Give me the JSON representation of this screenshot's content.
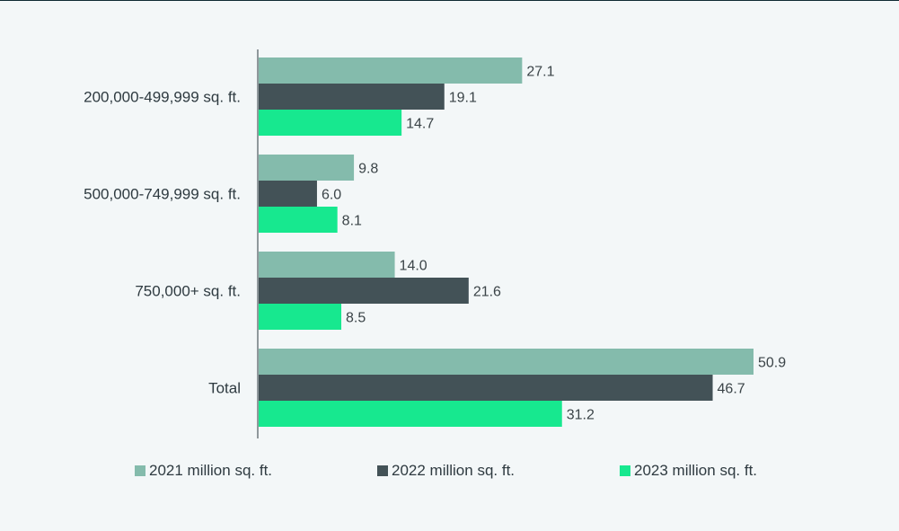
{
  "chart_data": {
    "type": "bar",
    "orientation": "horizontal",
    "categories": [
      "200,000-499,999 sq. ft.",
      "500,000-749,999 sq. ft.",
      "750,000+ sq. ft.",
      "Total"
    ],
    "series": [
      {
        "name": "2021 million sq. ft.",
        "color": "#84bbac",
        "values": [
          27.1,
          9.8,
          14.0,
          50.9
        ],
        "labels": [
          "27.1",
          "9.8",
          "14.0",
          "50.9"
        ]
      },
      {
        "name": "2022 million sq. ft.",
        "color": "#435257",
        "values": [
          19.1,
          6.0,
          21.6,
          46.7
        ],
        "labels": [
          "19.1",
          "6.0",
          "21.6",
          "46.7"
        ]
      },
      {
        "name": "2023 million sq. ft.",
        "color": "#17e88f",
        "values": [
          14.7,
          8.1,
          8.5,
          31.2
        ],
        "labels": [
          "14.7",
          "8.1",
          "8.5",
          "31.2"
        ]
      }
    ],
    "xlim": [
      0,
      50.9
    ],
    "grid": false,
    "legend_position": "bottom",
    "axis_color": "#2e3a40"
  }
}
